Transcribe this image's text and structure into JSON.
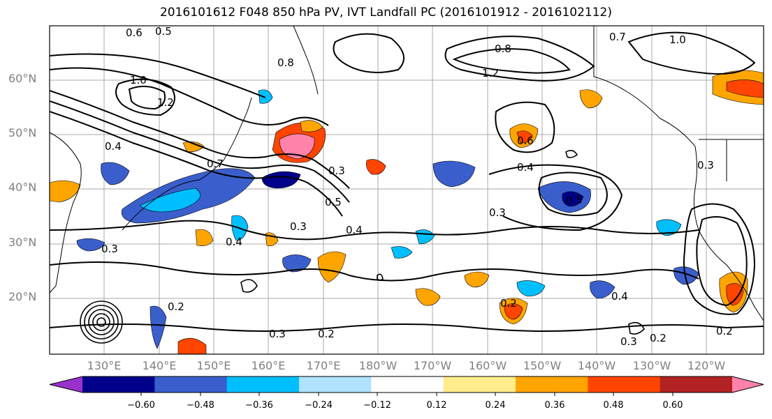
{
  "title": "2016101612 F048 850 hPa PV, IVT Landfall PC (2016101912 - 2016102112)",
  "lat_labels": [
    "60°N",
    "50°N",
    "40°N",
    "30°N",
    "20°N"
  ],
  "lon_labels": [
    "130°E",
    "140°E",
    "150°E",
    "160°E",
    "170°E",
    "180°W",
    "170°W",
    "160°W",
    "150°W",
    "140°W",
    "130°W",
    "120°W"
  ],
  "colorbar": {
    "ticks": [
      "−0.60",
      "−0.48",
      "−0.36",
      "−0.24",
      "−0.12",
      "0.12",
      "0.24",
      "0.36",
      "0.48",
      "0.60"
    ],
    "colors": [
      "#9932cc",
      "#00008b",
      "#3a5fcd",
      "#00bfff",
      "#b0e2ff",
      "#ffffff",
      "#ffec8b",
      "#ffa500",
      "#ff4500",
      "#b22222",
      "#ff82ab"
    ]
  },
  "contour_labels": [
    "0.6",
    "0.5",
    "1.0",
    "0.8",
    "1.2",
    "0.4",
    "0.3",
    "0.2",
    "0.7",
    "0.5",
    "0.3",
    "0.4",
    "0.3",
    "0.4",
    "0.2",
    "0.3",
    "0.2",
    "0.6",
    "0.5",
    "0.3",
    "0.4",
    "0.7",
    "0.8",
    "1.0",
    "1.2",
    "0.4",
    "0.3",
    "0.2",
    "0.3",
    "0.2"
  ]
}
